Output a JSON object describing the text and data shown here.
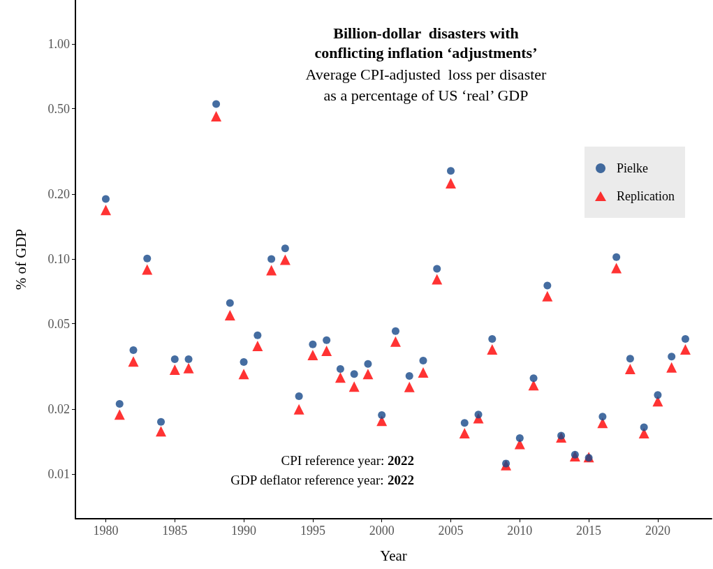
{
  "chart_data": {
    "type": "scatter",
    "title": "Billion-dollar  disasters with\nconflicting inflation ‘adjustments’",
    "subtitle": "Average CPI-adjusted  loss per disaster\nas a percentage of US ‘real’ GDP",
    "xlabel": "Year",
    "ylabel": "% of GDP",
    "x": [
      1980,
      1981,
      1982,
      1983,
      1984,
      1985,
      1986,
      1988,
      1989,
      1990,
      1991,
      1992,
      1993,
      1994,
      1995,
      1996,
      1997,
      1998,
      1999,
      2000,
      2001,
      2002,
      2003,
      2004,
      2005,
      2006,
      2007,
      2008,
      2009,
      2010,
      2011,
      2012,
      2013,
      2014,
      2015,
      2016,
      2017,
      2018,
      2019,
      2020,
      2021,
      2022
    ],
    "series": [
      {
        "name": "Pielke",
        "color": "#17498a",
        "marker": "circle",
        "values": [
          0.19,
          0.0212,
          0.0377,
          0.1005,
          0.0175,
          0.0342,
          0.0342,
          0.525,
          0.0624,
          0.0332,
          0.0442,
          0.1,
          0.112,
          0.023,
          0.0401,
          0.0419,
          0.0308,
          0.0292,
          0.0325,
          0.0188,
          0.0462,
          0.0286,
          0.0337,
          0.09,
          0.257,
          0.0173,
          0.0189,
          0.0425,
          0.0112,
          0.0147,
          0.0279,
          0.0752,
          0.0151,
          0.0123,
          0.0119,
          0.0185,
          0.102,
          0.0344,
          0.0165,
          0.0233,
          0.0352,
          0.0425
        ]
      },
      {
        "name": "Replication",
        "color": "#ff0000",
        "marker": "triangle",
        "values": [
          0.169,
          0.0189,
          0.0334,
          0.0894,
          0.0158,
          0.0306,
          0.0311,
          0.461,
          0.0548,
          0.0292,
          0.0394,
          0.0887,
          0.0993,
          0.02,
          0.0358,
          0.0374,
          0.0281,
          0.0255,
          0.0292,
          0.0177,
          0.0413,
          0.0254,
          0.0297,
          0.0805,
          0.225,
          0.0155,
          0.0182,
          0.038,
          0.011,
          0.0138,
          0.0259,
          0.0672,
          0.0148,
          0.0121,
          0.012,
          0.0173,
          0.0907,
          0.0308,
          0.0155,
          0.0218,
          0.0313,
          0.038
        ]
      }
    ],
    "xlim": [
      1977.8,
      2023.9
    ],
    "xticks": [
      1980,
      1985,
      1990,
      1995,
      2000,
      2005,
      2010,
      2015,
      2020
    ],
    "ylim": [
      0.0062,
      1.6
    ],
    "yticks": [
      0.01,
      0.02,
      0.05,
      {
        "value": 0.1,
        "label": "0.10"
      },
      {
        "value": 0.2,
        "label": "0.20"
      },
      {
        "value": 0.5,
        "label": "0.50"
      },
      {
        "value": 1,
        "label": "1.00"
      }
    ],
    "log": "y",
    "grid": false,
    "legend": "top right",
    "annotations": [
      "CPI reference year: 2022",
      "GDP deflator reference year: 2022"
    ]
  }
}
